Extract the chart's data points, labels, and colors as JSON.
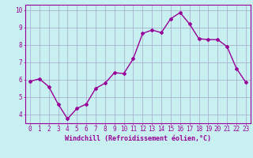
{
  "x": [
    0,
    1,
    2,
    3,
    4,
    5,
    6,
    7,
    8,
    9,
    10,
    11,
    12,
    13,
    14,
    15,
    16,
    17,
    18,
    19,
    20,
    21,
    22,
    23
  ],
  "y": [
    5.9,
    6.05,
    5.6,
    4.6,
    3.75,
    4.35,
    4.6,
    5.5,
    5.8,
    6.4,
    6.35,
    7.2,
    8.65,
    8.85,
    8.7,
    9.5,
    9.85,
    9.2,
    8.35,
    8.3,
    8.3,
    7.9,
    6.65,
    5.85
  ],
  "line_color": "#990099",
  "marker": "D",
  "markersize": 2.0,
  "linewidth": 1.0,
  "bg_color": "#c8f0f0",
  "grid_color": "#a0a8c8",
  "tick_color": "#990099",
  "label_color": "#990099",
  "xlabel": "Windchill (Refroidissement éolien,°C)",
  "xlabel_fontsize": 6.0,
  "tick_fontsize": 5.5,
  "ylim": [
    3.5,
    10.3
  ],
  "xlim": [
    -0.5,
    23.5
  ],
  "yticks": [
    4,
    5,
    6,
    7,
    8,
    9,
    10
  ],
  "xticks": [
    0,
    1,
    2,
    3,
    4,
    5,
    6,
    7,
    8,
    9,
    10,
    11,
    12,
    13,
    14,
    15,
    16,
    17,
    18,
    19,
    20,
    21,
    22,
    23
  ]
}
